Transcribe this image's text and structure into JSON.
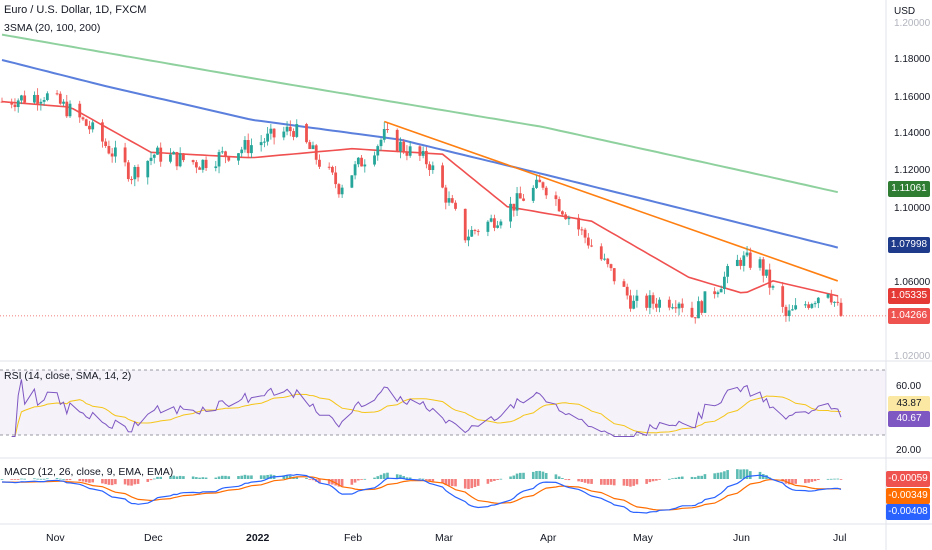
{
  "header": {
    "symbol_title": "Euro / U.S. Dollar, 1D, FXCM",
    "indicator_label": "3SMA (20, 100, 200)",
    "currency": "USD"
  },
  "price_axis": {
    "ticks": [
      "1.20000",
      "1.18000",
      "1.16000",
      "1.14000",
      "1.12000",
      "1.10000",
      "1.06000",
      "1.02000"
    ]
  },
  "price_tags": {
    "sma200": "1.11061",
    "sma100": "1.07998",
    "sma20": "1.05335",
    "last": "1.04266"
  },
  "rsi": {
    "label": "RSI (14, close, SMA, 14, 2)",
    "ticks": [
      "60.00",
      "20.00"
    ],
    "value_tags": [
      "43.87",
      "40.67"
    ]
  },
  "macd": {
    "label": "MACD (12, 26, close, 9, EMA, EMA)",
    "value_tags": [
      "-0.00059",
      "-0.00349",
      "-0.00408"
    ]
  },
  "time_axis": {
    "labels": [
      "Nov",
      "Dec",
      "2022",
      "Feb",
      "Mar",
      "Apr",
      "May",
      "Jun",
      "Jul"
    ]
  },
  "colors": {
    "up": "#26a69a",
    "down": "#ef5350",
    "sma20": "#f05050",
    "sma100": "#5b7fdc",
    "sma200": "#8fd19e",
    "trendline": "#ff7f11",
    "rsi_line": "#7e57c2",
    "rsi_ma": "#f5c518"
  },
  "chart_data": [
    {
      "type": "candlestick",
      "title": "Euro / U.S. Dollar, 1D, FXCM",
      "x_range": [
        "2021-10-15",
        "2022-07-01"
      ],
      "ylim": [
        1.02,
        1.2
      ],
      "close_path": [
        [
          "2021-10-15",
          1.161
        ],
        [
          "2021-10-28",
          1.165
        ],
        [
          "2021-11-05",
          1.156
        ],
        [
          "2021-11-12",
          1.145
        ],
        [
          "2021-11-24",
          1.121
        ],
        [
          "2021-12-01",
          1.132
        ],
        [
          "2021-12-15",
          1.127
        ],
        [
          "2021-12-31",
          1.137
        ],
        [
          "2022-01-13",
          1.146
        ],
        [
          "2022-01-27",
          1.114
        ],
        [
          "2022-02-10",
          1.142
        ],
        [
          "2022-02-24",
          1.127
        ],
        [
          "2022-03-07",
          1.087
        ],
        [
          "2022-03-15",
          1.095
        ],
        [
          "2022-03-31",
          1.116
        ],
        [
          "2022-04-14",
          1.084
        ],
        [
          "2022-04-28",
          1.049
        ],
        [
          "2022-05-12",
          1.052
        ],
        [
          "2022-05-16",
          1.043
        ],
        [
          "2022-05-31",
          1.074
        ],
        [
          "2022-06-06",
          1.071
        ],
        [
          "2022-06-14",
          1.042
        ],
        [
          "2022-06-27",
          1.058
        ],
        [
          "2022-07-01",
          1.0427
        ]
      ]
    },
    {
      "type": "line",
      "series": [
        {
          "name": "SMA 20",
          "values": [
            [
              "2021-10-15",
              1.161
            ],
            [
              "2021-11-05",
              1.158
            ],
            [
              "2021-11-30",
              1.133
            ],
            [
              "2021-12-31",
              1.13
            ],
            [
              "2022-01-31",
              1.135
            ],
            [
              "2022-02-28",
              1.132
            ],
            [
              "2022-03-20",
              1.103
            ],
            [
              "2022-04-15",
              1.095
            ],
            [
              "2022-05-15",
              1.064
            ],
            [
              "2022-06-01",
              1.055
            ],
            [
              "2022-06-10",
              1.062
            ],
            [
              "2022-07-01",
              1.05335
            ]
          ]
        },
        {
          "name": "SMA 100",
          "values": [
            [
              "2021-10-15",
              1.184
            ],
            [
              "2021-11-15",
              1.17
            ],
            [
              "2021-12-31",
              1.151
            ],
            [
              "2022-02-15",
              1.14
            ],
            [
              "2022-03-31",
              1.121
            ],
            [
              "2022-05-15",
              1.101
            ],
            [
              "2022-07-01",
              1.07998
            ]
          ]
        },
        {
          "name": "SMA 200",
          "values": [
            [
              "2021-10-15",
              1.198
            ],
            [
              "2021-12-31",
              1.174
            ],
            [
              "2022-03-31",
              1.147
            ],
            [
              "2022-05-31",
              1.123
            ],
            [
              "2022-07-01",
              1.11061
            ]
          ]
        }
      ]
    },
    {
      "type": "line",
      "title": "RSI (14, close, SMA, 14, 2)",
      "ylim": [
        15,
        70
      ],
      "series": [
        {
          "name": "RSI",
          "last": 40.67
        },
        {
          "name": "RSI SMA",
          "last": 43.87
        }
      ]
    },
    {
      "type": "bar",
      "title": "MACD (12, 26, close, 9, EMA, EMA)",
      "series": [
        {
          "name": "Histogram",
          "last": -0.00059
        },
        {
          "name": "MACD",
          "last": -0.00349
        },
        {
          "name": "Signal",
          "last": -0.00408
        }
      ]
    }
  ]
}
